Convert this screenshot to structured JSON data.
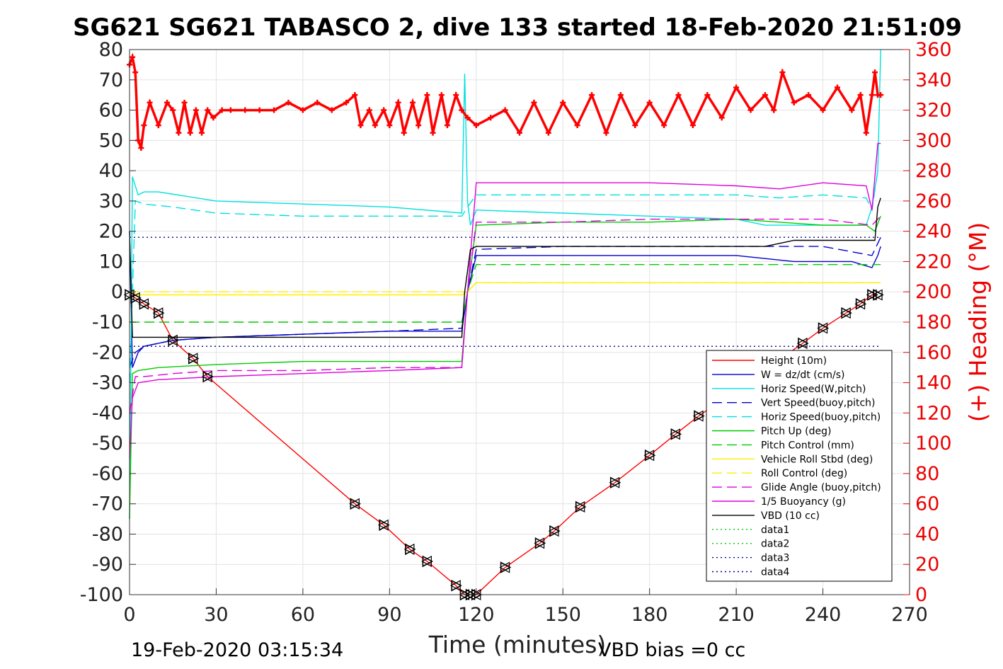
{
  "chart_data": {
    "type": "line",
    "title": "SG621 SG621 TABASCO 2, dive 133 started 18-Feb-2020 21:51:09",
    "xlabel": "Time (minutes)",
    "ylabel": "",
    "ylabel_right": "(+) Heading (°M)",
    "xlim": [
      0,
      270
    ],
    "ylim": [
      -100,
      80
    ],
    "ylim_right": [
      0,
      360
    ],
    "x_ticks": [
      0,
      30,
      60,
      90,
      120,
      150,
      180,
      210,
      240,
      270
    ],
    "y_ticks": [
      80,
      70,
      60,
      50,
      40,
      30,
      20,
      10,
      0,
      -10,
      -20,
      -30,
      -40,
      -50,
      -60,
      -70,
      -80,
      -90,
      -100
    ],
    "y_ticks_right": [
      360,
      340,
      320,
      300,
      280,
      260,
      240,
      220,
      200,
      180,
      160,
      140,
      120,
      100,
      80,
      60,
      40,
      20,
      0
    ],
    "grid": true,
    "legend_position": "bottom-right",
    "footer_left": "19-Feb-2020 03:15:34",
    "footer_right": "VBD bias =0 cc",
    "series": [
      {
        "name": "Height (10m)",
        "color": "#ff0000",
        "style": "solid",
        "x": [
          0,
          2,
          5,
          10,
          15,
          22,
          27,
          78,
          88,
          97,
          103,
          113,
          116,
          118,
          120,
          130,
          142,
          147,
          156,
          168,
          180,
          189,
          197,
          233,
          240,
          248,
          253,
          257,
          259
        ],
        "y": [
          -1,
          -2,
          -4,
          -7,
          -16,
          -22,
          -28,
          -70,
          -77,
          -85,
          -89,
          -97,
          -100,
          -100,
          -100,
          -91,
          -83,
          -79,
          -71,
          -63,
          -54,
          -47,
          -41,
          -17,
          -12,
          -7,
          -4,
          -1,
          -1
        ]
      },
      {
        "name": "W = dz/dt (cm/s)",
        "color": "#0000cc",
        "style": "solid",
        "x": [
          0,
          1,
          3,
          5,
          15,
          30,
          60,
          90,
          115,
          117,
          120,
          150,
          180,
          210,
          230,
          250,
          257,
          259,
          260
        ],
        "y": [
          20,
          -25,
          -20,
          -18,
          -16,
          -15,
          -14,
          -13,
          -13,
          0,
          12,
          12,
          12,
          12,
          10,
          10,
          8,
          12,
          15
        ]
      },
      {
        "name": "Horiz Speed(W,pitch)",
        "color": "#00e0e0",
        "style": "solid",
        "x": [
          0,
          1,
          3,
          5,
          10,
          30,
          60,
          90,
          115,
          116,
          117,
          118,
          120,
          150,
          180,
          210,
          220,
          235,
          255,
          257,
          259,
          260
        ],
        "y": [
          -75,
          38,
          32,
          33,
          33,
          30,
          29,
          28,
          26,
          72,
          30,
          22,
          27,
          26,
          25,
          24,
          22,
          22,
          22,
          28,
          40,
          80
        ]
      },
      {
        "name": "Vert Speed(buoy,pitch)",
        "color": "#0000cc",
        "style": "dashed",
        "x": [
          0,
          2,
          5,
          15,
          30,
          60,
          90,
          115,
          117,
          120,
          150,
          180,
          210,
          240,
          257,
          260
        ],
        "y": [
          -25,
          -20,
          -18,
          -16,
          -15,
          -14,
          -13,
          -12,
          0,
          14,
          15,
          15,
          15,
          15,
          12,
          18
        ]
      },
      {
        "name": "Horiz Speed(buoy,pitch)",
        "color": "#00e0e0",
        "style": "dashed",
        "x": [
          0,
          2,
          5,
          15,
          30,
          60,
          90,
          115,
          117,
          120,
          150,
          180,
          210,
          225,
          240,
          255,
          257,
          259
        ],
        "y": [
          -30,
          30,
          29,
          28,
          26,
          25,
          25,
          25,
          28,
          32,
          32,
          32,
          32,
          31,
          32,
          31,
          27,
          40
        ]
      },
      {
        "name": "Pitch Up (deg)",
        "color": "#00cc00",
        "style": "solid",
        "x": [
          0,
          1,
          3,
          10,
          30,
          60,
          90,
          115,
          117,
          120,
          150,
          180,
          210,
          240,
          255,
          258,
          260
        ],
        "y": [
          -75,
          -27,
          -26,
          -25,
          -24,
          -23,
          -23,
          -23,
          0,
          22,
          23,
          23,
          24,
          22,
          22,
          20,
          25
        ]
      },
      {
        "name": "Pitch Control (mm)",
        "color": "#00cc00",
        "style": "dashed",
        "x": [
          0,
          115,
          117,
          120,
          150,
          180,
          210,
          240,
          260
        ],
        "y": [
          -10,
          -10,
          0,
          9,
          9,
          9,
          9,
          9,
          9
        ]
      },
      {
        "name": "Vehicle Roll Stbd (deg)",
        "color": "#ffee00",
        "style": "solid",
        "x": [
          0,
          3,
          30,
          60,
          90,
          115,
          117,
          120,
          150,
          180,
          210,
          240,
          260
        ],
        "y": [
          0,
          -1,
          -1,
          -1,
          -1,
          -1,
          0,
          3,
          3,
          3,
          3,
          3,
          3
        ]
      },
      {
        "name": "Roll Control (deg)",
        "color": "#ffee00",
        "style": "dashed",
        "x": [
          0,
          115,
          117,
          120,
          260
        ],
        "y": [
          0,
          0,
          0,
          3,
          3
        ]
      },
      {
        "name": "Glide Angle (buoy,pitch)",
        "color": "#dd00dd",
        "style": "dashed",
        "x": [
          0,
          2,
          5,
          15,
          30,
          60,
          90,
          115,
          117,
          120,
          150,
          180,
          210,
          240,
          257,
          260
        ],
        "y": [
          -40,
          -28,
          -28,
          -27,
          -26,
          -26,
          -25,
          -25,
          0,
          23,
          23,
          24,
          24,
          24,
          22,
          25
        ]
      },
      {
        "name": "1/5 Buoyancy (g)",
        "color": "#dd00dd",
        "style": "solid",
        "x": [
          0,
          1,
          3,
          10,
          30,
          60,
          90,
          115,
          117,
          120,
          150,
          180,
          210,
          225,
          240,
          255,
          257,
          259,
          260
        ],
        "y": [
          -55,
          -35,
          -30,
          -29,
          -28,
          -27,
          -26,
          -25,
          0,
          36,
          36,
          36,
          35,
          34,
          36,
          35,
          27,
          49,
          49
        ]
      },
      {
        "name": "VBD (10 cc)",
        "color": "#000000",
        "style": "solid",
        "x": [
          0,
          1,
          2,
          115,
          116,
          118,
          120,
          150,
          180,
          210,
          220,
          225,
          230,
          258,
          259,
          260
        ],
        "y": [
          20,
          -15,
          -15,
          -15,
          0,
          14,
          15,
          15,
          15,
          15,
          15,
          16,
          17,
          17,
          28,
          31
        ]
      },
      {
        "name": "data1",
        "color": "#00cc00",
        "style": "dotted",
        "x": [],
        "y": []
      },
      {
        "name": "data2",
        "color": "#00cc00",
        "style": "dotted",
        "x": [],
        "y": []
      },
      {
        "name": "data3",
        "color": "#000088",
        "style": "dotted",
        "x": [
          0,
          260
        ],
        "y": [
          18,
          18
        ]
      },
      {
        "name": "data4",
        "color": "#000088",
        "style": "dotted",
        "x": [
          0,
          260
        ],
        "y": [
          -18,
          -18
        ]
      }
    ],
    "heading_series": {
      "name": "(+) Heading (°M)",
      "color": "#ff0000",
      "axis": "right",
      "x": [
        0,
        1,
        2,
        3,
        4,
        5,
        7,
        10,
        13,
        15,
        17,
        19,
        21,
        23,
        25,
        27,
        29,
        32,
        35,
        40,
        45,
        50,
        55,
        60,
        65,
        70,
        75,
        78,
        80,
        83,
        85,
        88,
        90,
        93,
        95,
        98,
        100,
        103,
        105,
        108,
        110,
        113,
        115,
        117,
        120,
        125,
        130,
        135,
        140,
        145,
        150,
        155,
        160,
        165,
        170,
        175,
        180,
        185,
        190,
        195,
        200,
        205,
        210,
        215,
        220,
        223,
        226,
        230,
        235,
        240,
        245,
        250,
        253,
        255,
        257,
        258,
        259,
        260
      ],
      "y": [
        350,
        355,
        345,
        300,
        295,
        310,
        325,
        310,
        325,
        320,
        305,
        325,
        305,
        320,
        305,
        320,
        315,
        320,
        320,
        320,
        320,
        320,
        325,
        320,
        325,
        320,
        325,
        330,
        310,
        320,
        310,
        320,
        310,
        325,
        305,
        325,
        310,
        330,
        305,
        330,
        310,
        330,
        320,
        315,
        310,
        315,
        320,
        305,
        325,
        305,
        325,
        310,
        330,
        305,
        330,
        310,
        325,
        310,
        330,
        310,
        330,
        315,
        335,
        320,
        330,
        320,
        345,
        325,
        330,
        320,
        335,
        320,
        330,
        305,
        330,
        345,
        330,
        330
      ]
    },
    "markers_note": "triangle markers along Height (10m)"
  }
}
